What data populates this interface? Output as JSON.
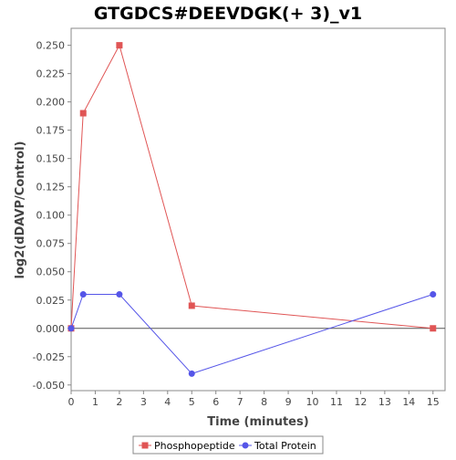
{
  "chart_data": {
    "type": "line",
    "title": "GTGDCS#DEEVDGK(+ 3)_v1",
    "xlabel": "Time (minutes)",
    "ylabel": "log2(dDAVP/Control)",
    "xlim": [
      0,
      15.5
    ],
    "ylim": [
      -0.055,
      0.265
    ],
    "x_ticks": [
      0,
      1,
      2,
      3,
      4,
      5,
      6,
      7,
      8,
      9,
      10,
      11,
      12,
      13,
      14,
      15
    ],
    "y_ticks": [
      -0.05,
      -0.025,
      0.0,
      0.025,
      0.05,
      0.075,
      0.1,
      0.125,
      0.15,
      0.175,
      0.2,
      0.225,
      0.25
    ],
    "y_tick_labels": [
      "-0.050",
      "-0.025",
      "0.000",
      "0.025",
      "0.050",
      "0.075",
      "0.100",
      "0.125",
      "0.150",
      "0.175",
      "0.200",
      "0.225",
      "0.250"
    ],
    "zero_line": true,
    "grid": false,
    "legend_position": "bottom-center",
    "series": [
      {
        "name": "Phosphopeptide",
        "marker": "square",
        "color": "#e05555",
        "x": [
          0,
          0.5,
          2,
          5,
          15
        ],
        "y": [
          0.0,
          0.19,
          0.25,
          0.02,
          0.0
        ]
      },
      {
        "name": "Total Protein",
        "marker": "circle",
        "color": "#5555e8",
        "x": [
          0,
          0.5,
          2,
          5,
          15
        ],
        "y": [
          0.0,
          0.03,
          0.03,
          -0.04,
          0.03
        ]
      }
    ]
  }
}
